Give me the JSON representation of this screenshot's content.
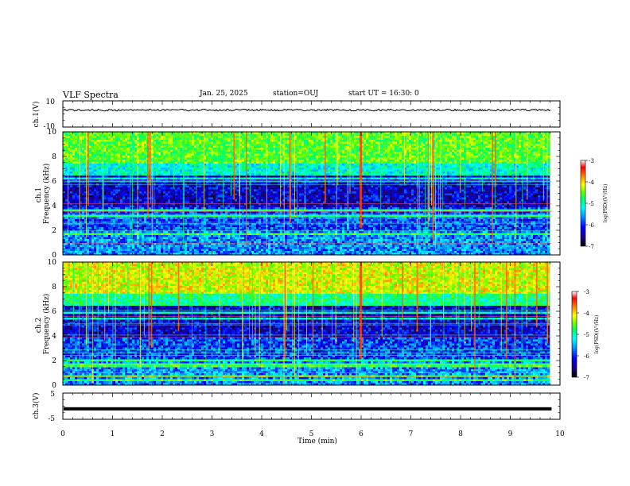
{
  "header": {
    "title": "VLF Spectra",
    "date": "Jan. 25, 2025",
    "station": "station=OUJ",
    "start_ut": "start UT =  16:30: 0"
  },
  "chart_data": [
    {
      "type": "line",
      "panel": "ch1-voltage",
      "ylabel": "ch.1(V)",
      "ylim": [
        -10,
        10
      ],
      "ytick_labels": [
        "10",
        "-10"
      ],
      "series": [
        {
          "values_approx": "noisy trace near +3 V"
        }
      ]
    },
    {
      "type": "heatmap",
      "panel": "ch1-spectrogram",
      "ylabel": "ch.1\nFrequency (kHz)",
      "ylim": [
        0,
        10
      ],
      "ytick_labels": [
        "0",
        "2",
        "4",
        "6",
        "8",
        "10"
      ],
      "colorbar": {
        "label": "log(PSD)(V²/Hz)",
        "range": [
          -7,
          -3
        ],
        "tick_labels": [
          "-3",
          "-4",
          "-5",
          "-6",
          "-7"
        ]
      }
    },
    {
      "type": "heatmap",
      "panel": "ch2-spectrogram",
      "ylabel": "ch.2\nFrequency (kHz)",
      "ylim": [
        0,
        10
      ],
      "ytick_labels": [
        "0",
        "2",
        "4",
        "6",
        "8",
        "10"
      ],
      "colorbar": {
        "label": "log(PSD)(V²/Hz)",
        "range": [
          -7,
          -3
        ],
        "tick_labels": [
          "-3",
          "-4",
          "-5",
          "-6",
          "-7"
        ]
      }
    },
    {
      "type": "line",
      "panel": "ch3-voltage",
      "ylabel": "ch.3(V)",
      "ylim": [
        -5,
        5
      ],
      "ytick_labels": [
        "5",
        "-5"
      ],
      "series": [
        {
          "values_approx": "flat trace near -1 V"
        }
      ]
    }
  ],
  "xaxis": {
    "label": "Time (min)",
    "range": [
      0,
      10
    ],
    "data_end": 9.83,
    "tick_labels": [
      "0",
      "1",
      "2",
      "3",
      "4",
      "5",
      "6",
      "7",
      "8",
      "9",
      "10"
    ]
  },
  "colors": {
    "colormap": [
      "#000000",
      "#1a0080",
      "#0000ff",
      "#0099ff",
      "#00ffff",
      "#00ff66",
      "#66ff00",
      "#ffff00",
      "#ff8000",
      "#ff0000",
      "#ffffff"
    ]
  }
}
